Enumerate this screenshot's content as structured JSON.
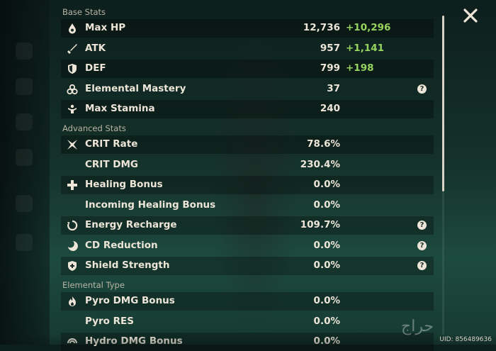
{
  "sections": {
    "base": "Base Stats",
    "advanced": "Advanced Stats",
    "elemental": "Elemental Type"
  },
  "base_stats": [
    {
      "icon": "water-drop-icon",
      "label": "Max HP",
      "value": "12,736",
      "bonus": "+10,296",
      "help": false
    },
    {
      "icon": "sword-icon",
      "label": "ATK",
      "value": "957",
      "bonus": "+1,141",
      "help": false
    },
    {
      "icon": "shield-icon",
      "label": "DEF",
      "value": "799",
      "bonus": "+198",
      "help": false
    },
    {
      "icon": "mastery-icon",
      "label": "Elemental Mastery",
      "value": "37",
      "bonus": "",
      "help": true
    },
    {
      "icon": "stamina-icon",
      "label": "Max Stamina",
      "value": "240",
      "bonus": "",
      "help": false
    }
  ],
  "advanced_stats": [
    {
      "icon": "crit-icon",
      "label": "CRIT Rate",
      "value": "78.6%",
      "help": false
    },
    {
      "icon": "",
      "label": "CRIT DMG",
      "value": "230.4%",
      "help": false
    },
    {
      "icon": "healing-cross-icon",
      "label": "Healing Bonus",
      "value": "0.0%",
      "help": false
    },
    {
      "icon": "",
      "label": "Incoming Healing Bonus",
      "value": "0.0%",
      "help": false
    },
    {
      "icon": "energy-recharge-icon",
      "label": "Energy Recharge",
      "value": "109.7%",
      "help": true
    },
    {
      "icon": "cd-reduction-icon",
      "label": "CD Reduction",
      "value": "0.0%",
      "help": true
    },
    {
      "icon": "shield-strength-icon",
      "label": "Shield Strength",
      "value": "0.0%",
      "help": true
    }
  ],
  "elemental_stats": [
    {
      "icon": "pyro-icon",
      "label": "Pyro DMG Bonus",
      "value": "0.0%"
    },
    {
      "icon": "",
      "label": "Pyro RES",
      "value": "0.0%"
    },
    {
      "icon": "hydro-icon",
      "label": "Hydro DMG Bonus",
      "value": "0.0%"
    }
  ],
  "help_symbol": "?",
  "uid": "UID: 856489636",
  "watermark": "حراج",
  "colors": {
    "bonus": "#96d45f",
    "text": "#ece5d8",
    "section": "#b9b4a6"
  }
}
